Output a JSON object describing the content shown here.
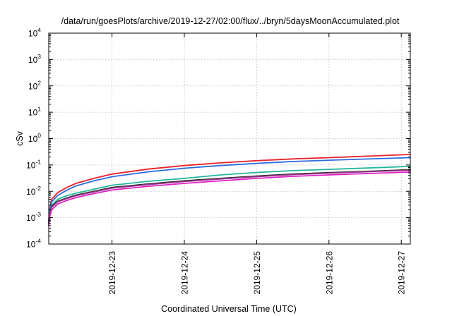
{
  "chart_data": {
    "type": "line",
    "title": "/data/run/goesPlots/archive/2019-12-27/02:00/flux/../bryn/5daysMoonAccumulated.plot",
    "xlabel": "Coordinated Universal Time (UTC)",
    "ylabel": "cSv",
    "x_type": "date",
    "xlim": [
      "2019-12-22T03:00",
      "2019-12-27T03:00"
    ],
    "ylim": [
      0.0001,
      10000
    ],
    "y_scale": "log",
    "grid": true,
    "legend": "none",
    "x_tick_labels": [
      "2019-12-23",
      "2019-12-24",
      "2019-12-25",
      "2019-12-26",
      "2019-12-27"
    ],
    "y_ticks": [
      {
        "value": 0.0001,
        "base": "10",
        "exp": "-4"
      },
      {
        "value": 0.001,
        "base": "10",
        "exp": "-3"
      },
      {
        "value": 0.01,
        "base": "10",
        "exp": "-2"
      },
      {
        "value": 0.1,
        "base": "10",
        "exp": "-1"
      },
      {
        "value": 1,
        "base": "10",
        "exp": "0"
      },
      {
        "value": 10,
        "base": "10",
        "exp": "1"
      },
      {
        "value": 100,
        "base": "10",
        "exp": "2"
      },
      {
        "value": 1000,
        "base": "10",
        "exp": "3"
      },
      {
        "value": 10000,
        "base": "10",
        "exp": "4"
      }
    ],
    "series": [
      {
        "color": "#e8202a",
        "x": [
          "2019-12-22T03:00",
          "2019-12-22T03:15",
          "2019-12-22T04:00",
          "2019-12-22T06:00",
          "2019-12-22T09:00",
          "2019-12-22T12:00",
          "2019-12-22T18:00",
          "2019-12-23T00:00",
          "2019-12-23T12:00",
          "2019-12-24T00:00",
          "2019-12-24T12:00",
          "2019-12-25T00:00",
          "2019-12-25T12:00",
          "2019-12-26T00:00",
          "2019-12-26T12:00",
          "2019-12-27T03:00"
        ],
        "y": [
          0.0008,
          0.002,
          0.005,
          0.009,
          0.014,
          0.02,
          0.031,
          0.045,
          0.07,
          0.095,
          0.12,
          0.145,
          0.17,
          0.19,
          0.215,
          0.25
        ]
      },
      {
        "color": "#2a6be0",
        "x": [
          "2019-12-22T03:00",
          "2019-12-22T03:15",
          "2019-12-22T04:00",
          "2019-12-22T06:00",
          "2019-12-22T09:00",
          "2019-12-22T12:00",
          "2019-12-22T18:00",
          "2019-12-23T00:00",
          "2019-12-23T12:00",
          "2019-12-24T00:00",
          "2019-12-24T12:00",
          "2019-12-25T00:00",
          "2019-12-25T12:00",
          "2019-12-26T00:00",
          "2019-12-26T12:00",
          "2019-12-27T03:00"
        ],
        "y": [
          0.0007,
          0.0018,
          0.004,
          0.007,
          0.011,
          0.016,
          0.025,
          0.036,
          0.055,
          0.075,
          0.095,
          0.115,
          0.135,
          0.152,
          0.168,
          0.19
        ]
      },
      {
        "color": "#20b89a",
        "x": [
          "2019-12-22T03:00",
          "2019-12-22T03:15",
          "2019-12-22T04:00",
          "2019-12-22T06:00",
          "2019-12-22T09:00",
          "2019-12-22T12:00",
          "2019-12-22T18:00",
          "2019-12-23T00:00",
          "2019-12-23T12:00",
          "2019-12-24T00:00",
          "2019-12-24T12:00",
          "2019-12-25T00:00",
          "2019-12-25T12:00",
          "2019-12-26T00:00",
          "2019-12-26T12:00",
          "2019-12-27T03:00"
        ],
        "y": [
          0.0007,
          0.0015,
          0.003,
          0.005,
          0.0068,
          0.0085,
          0.012,
          0.017,
          0.024,
          0.031,
          0.042,
          0.052,
          0.061,
          0.068,
          0.076,
          0.088
        ]
      },
      {
        "color": "#202020",
        "x": [
          "2019-12-22T03:00",
          "2019-12-22T03:15",
          "2019-12-22T04:00",
          "2019-12-22T06:00",
          "2019-12-22T09:00",
          "2019-12-22T12:00",
          "2019-12-22T18:00",
          "2019-12-23T00:00",
          "2019-12-23T12:00",
          "2019-12-24T00:00",
          "2019-12-24T12:00",
          "2019-12-25T00:00",
          "2019-12-25T12:00",
          "2019-12-26T00:00",
          "2019-12-26T12:00",
          "2019-12-27T03:00"
        ],
        "y": [
          0.0006,
          0.0013,
          0.0027,
          0.0042,
          0.0056,
          0.0072,
          0.01,
          0.014,
          0.019,
          0.025,
          0.031,
          0.038,
          0.045,
          0.051,
          0.057,
          0.066
        ]
      },
      {
        "color": "#9a3a8a",
        "x": [
          "2019-12-22T03:00",
          "2019-12-22T03:15",
          "2019-12-22T04:00",
          "2019-12-22T06:00",
          "2019-12-22T09:00",
          "2019-12-22T12:00",
          "2019-12-22T18:00",
          "2019-12-23T00:00",
          "2019-12-23T12:00",
          "2019-12-24T00:00",
          "2019-12-24T12:00",
          "2019-12-25T00:00",
          "2019-12-25T12:00",
          "2019-12-26T00:00",
          "2019-12-26T12:00",
          "2019-12-27T03:00"
        ],
        "y": [
          0.0006,
          0.0012,
          0.0025,
          0.004,
          0.0053,
          0.0068,
          0.0095,
          0.0132,
          0.018,
          0.0235,
          0.0295,
          0.036,
          0.043,
          0.049,
          0.055,
          0.063
        ]
      },
      {
        "color": "#e020c8",
        "x": [
          "2019-12-22T03:00",
          "2019-12-22T03:15",
          "2019-12-22T04:00",
          "2019-12-22T06:00",
          "2019-12-22T09:00",
          "2019-12-22T12:00",
          "2019-12-22T18:00",
          "2019-12-23T00:00",
          "2019-12-23T12:00",
          "2019-12-24T00:00",
          "2019-12-24T12:00",
          "2019-12-25T00:00",
          "2019-12-25T12:00",
          "2019-12-26T00:00",
          "2019-12-26T12:00",
          "2019-12-27T03:00"
        ],
        "y": [
          0.0005,
          0.001,
          0.002,
          0.0033,
          0.0045,
          0.0058,
          0.0082,
          0.0112,
          0.0155,
          0.02,
          0.025,
          0.031,
          0.037,
          0.042,
          0.047,
          0.054
        ]
      }
    ]
  }
}
